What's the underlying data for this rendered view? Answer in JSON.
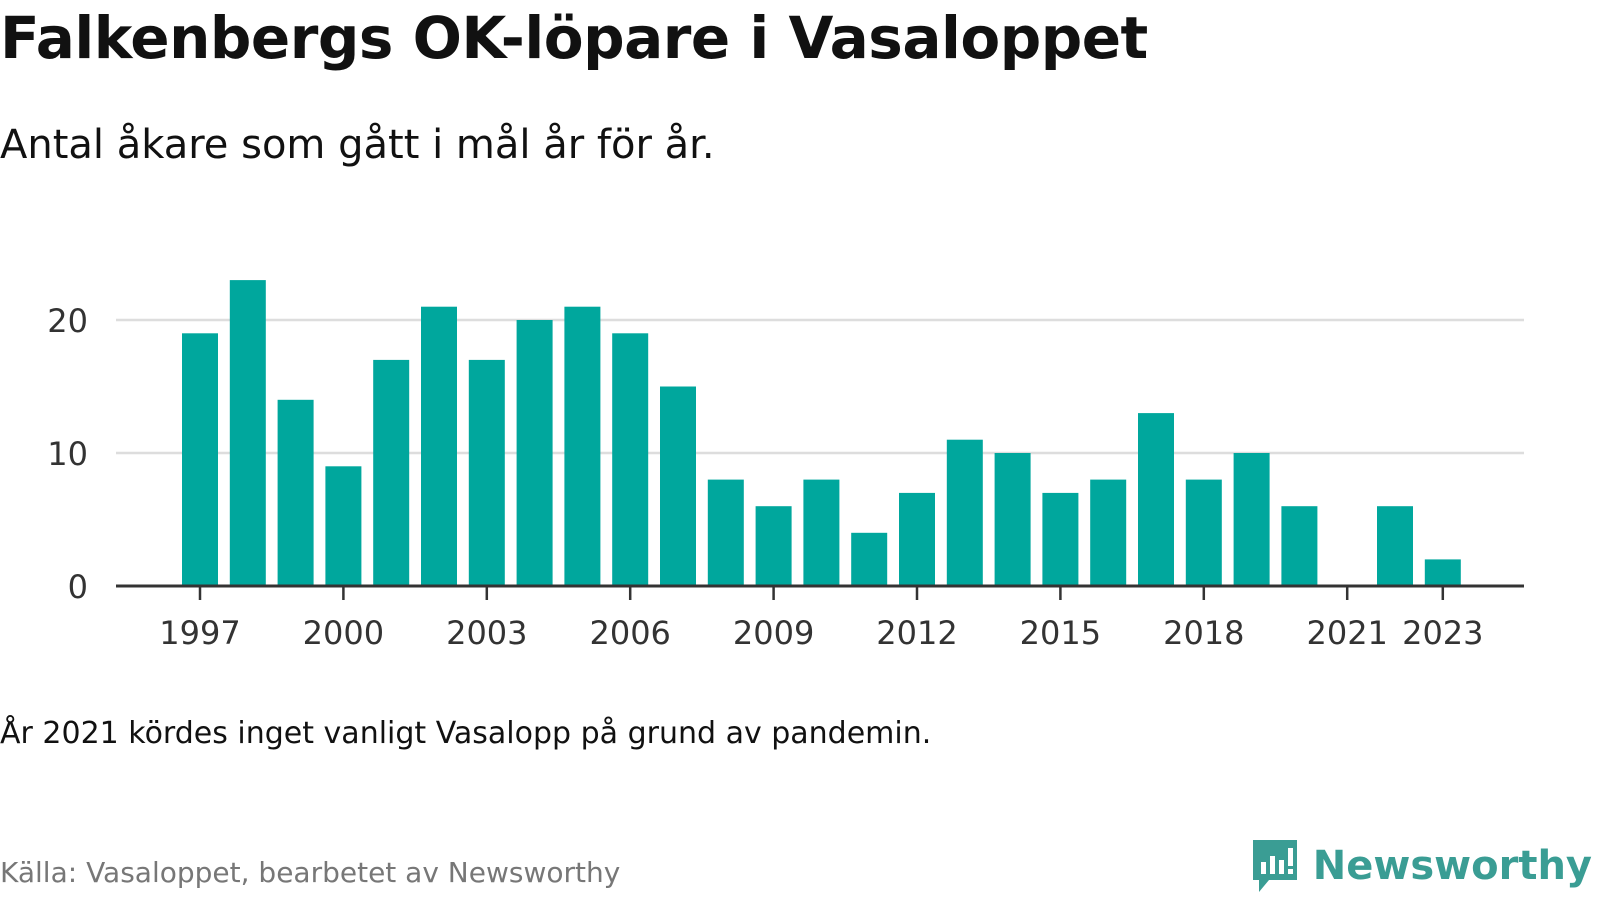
{
  "title": "Falkenbergs OK-löpare i Vasaloppet",
  "subtitle": "Antal åkare som gått i mål år för år.",
  "note": "År 2021 kördes inget vanligt Vasalopp på grund av pandemin.",
  "source": "Källa: Vasaloppet, bearbetet av Newsworthy",
  "brand": {
    "name": "Newsworthy",
    "icon": "newsworthy-logo-icon"
  },
  "colors": {
    "bar": "#00a79d",
    "grid": "#dddddd",
    "axis": "#333333",
    "tick_text": "#333333",
    "brand": "#3a9d94"
  },
  "chart_data": {
    "type": "bar",
    "categories": [
      "1997",
      "1998",
      "1999",
      "2000",
      "2001",
      "2002",
      "2003",
      "2004",
      "2005",
      "2006",
      "2007",
      "2008",
      "2009",
      "2010",
      "2011",
      "2012",
      "2013",
      "2014",
      "2015",
      "2016",
      "2017",
      "2018",
      "2019",
      "2020",
      "2021",
      "2022",
      "2023"
    ],
    "values": [
      19,
      23,
      14,
      9,
      17,
      21,
      17,
      20,
      21,
      19,
      15,
      8,
      6,
      8,
      4,
      7,
      11,
      10,
      7,
      8,
      13,
      8,
      10,
      6,
      0,
      6,
      2
    ],
    "x_tick_labels": [
      "1997",
      "2000",
      "2003",
      "2006",
      "2009",
      "2012",
      "2015",
      "2018",
      "2021",
      "2023"
    ],
    "y_ticks": [
      0,
      10,
      20
    ],
    "ylim": [
      0,
      23
    ],
    "xlabel": "",
    "ylabel": "",
    "grid": true
  }
}
